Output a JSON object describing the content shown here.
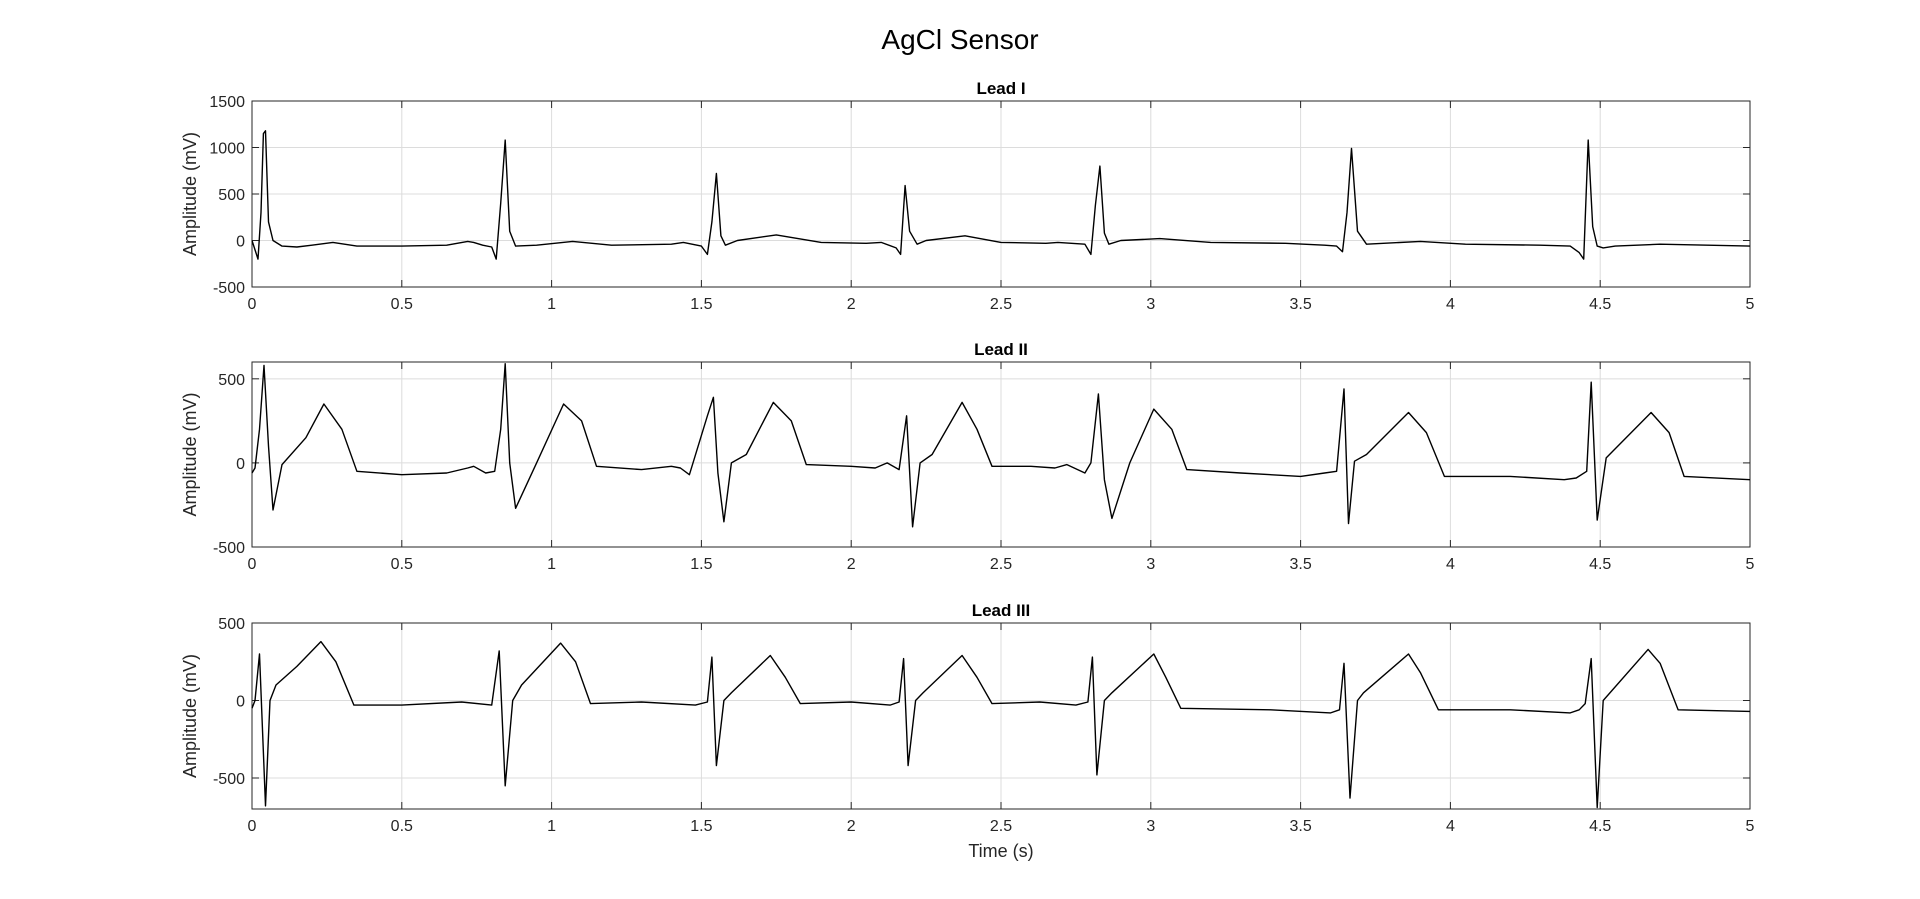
{
  "figure": {
    "title": "AgCl Sensor"
  },
  "chart_data": [
    {
      "type": "line",
      "title": "Lead I",
      "xlabel": "",
      "ylabel": "Amplitude (mV)",
      "xlim": [
        0,
        5
      ],
      "ylim": [
        -500,
        1500
      ],
      "xticks": [
        0,
        0.5,
        1,
        1.5,
        2,
        2.5,
        3,
        3.5,
        4,
        4.5,
        5
      ],
      "xtick_labels": [
        "0",
        "0.5",
        "1",
        "1.5",
        "2",
        "2.5",
        "3",
        "3.5",
        "4",
        "4.5",
        "5"
      ],
      "yticks": [
        -500,
        0,
        500,
        1000,
        1500
      ],
      "ytick_labels": [
        "-500",
        "0",
        "500",
        "1000",
        "1500"
      ],
      "grid": true,
      "color": "#000000",
      "series": [
        {
          "x": [
            0,
            0.02,
            0.03,
            0.038,
            0.045,
            0.055,
            0.07,
            0.1,
            0.15,
            0.2,
            0.27,
            0.35,
            0.5,
            0.65,
            0.72,
            0.74,
            0.77,
            0.8,
            0.815,
            0.83,
            0.845,
            0.86,
            0.88,
            0.95,
            1.07,
            1.2,
            1.4,
            1.44,
            1.5,
            1.52,
            1.535,
            1.55,
            1.565,
            1.58,
            1.62,
            1.75,
            1.9,
            2.05,
            2.1,
            2.15,
            2.165,
            2.18,
            2.195,
            2.22,
            2.25,
            2.38,
            2.5,
            2.65,
            2.69,
            2.78,
            2.8,
            2.815,
            2.83,
            2.845,
            2.86,
            2.9,
            3.03,
            3.2,
            3.45,
            3.58,
            3.62,
            3.64,
            3.655,
            3.67,
            3.69,
            3.72,
            3.9,
            4.05,
            4.3,
            4.4,
            4.43,
            4.445,
            4.46,
            4.475,
            4.49,
            4.51,
            4.55,
            4.7,
            5
          ],
          "y": [
            0,
            -200,
            300,
            1150,
            1180,
            200,
            0,
            -60,
            -70,
            -50,
            -20,
            -60,
            -60,
            -50,
            -10,
            -20,
            -50,
            -70,
            -200,
            400,
            1080,
            100,
            -60,
            -50,
            -10,
            -50,
            -40,
            -20,
            -60,
            -150,
            200,
            720,
            50,
            -50,
            0,
            60,
            -20,
            -30,
            -20,
            -80,
            -150,
            590,
            100,
            -40,
            0,
            50,
            -20,
            -30,
            -20,
            -40,
            -150,
            380,
            800,
            80,
            -40,
            0,
            20,
            -20,
            -30,
            -50,
            -60,
            -120,
            300,
            990,
            100,
            -40,
            -10,
            -40,
            -50,
            -60,
            -130,
            -200,
            1080,
            150,
            -60,
            -80,
            -60,
            -40,
            -60
          ]
        }
      ]
    },
    {
      "type": "line",
      "title": "Lead II",
      "xlabel": "",
      "ylabel": "Amplitude (mV)",
      "xlim": [
        0,
        5
      ],
      "ylim": [
        -500,
        600
      ],
      "xticks": [
        0,
        0.5,
        1,
        1.5,
        2,
        2.5,
        3,
        3.5,
        4,
        4.5,
        5
      ],
      "xtick_labels": [
        "0",
        "0.5",
        "1",
        "1.5",
        "2",
        "2.5",
        "3",
        "3.5",
        "4",
        "4.5",
        "5"
      ],
      "yticks": [
        -500,
        0,
        500
      ],
      "ytick_labels": [
        "-500",
        "0",
        "500"
      ],
      "grid": true,
      "color": "#000000",
      "series": [
        {
          "x": [
            0,
            0.01,
            0.025,
            0.04,
            0.055,
            0.07,
            0.1,
            0.18,
            0.24,
            0.3,
            0.35,
            0.5,
            0.65,
            0.72,
            0.74,
            0.78,
            0.81,
            0.83,
            0.845,
            0.86,
            0.88,
            0.95,
            1.04,
            1.1,
            1.15,
            1.3,
            1.4,
            1.43,
            1.46,
            1.52,
            1.54,
            1.555,
            1.575,
            1.6,
            1.65,
            1.74,
            1.8,
            1.85,
            2,
            2.08,
            2.12,
            2.16,
            2.185,
            2.205,
            2.23,
            2.27,
            2.37,
            2.42,
            2.47,
            2.6,
            2.68,
            2.72,
            2.78,
            2.8,
            2.825,
            2.845,
            2.87,
            2.93,
            3.01,
            3.07,
            3.12,
            3.3,
            3.5,
            3.58,
            3.62,
            3.645,
            3.66,
            3.68,
            3.72,
            3.86,
            3.92,
            3.98,
            4.2,
            4.38,
            4.42,
            4.455,
            4.47,
            4.49,
            4.52,
            4.67,
            4.73,
            4.78,
            5
          ],
          "y": [
            -60,
            -30,
            200,
            580,
            100,
            -280,
            -10,
            150,
            350,
            200,
            -50,
            -70,
            -60,
            -30,
            -20,
            -60,
            -50,
            200,
            590,
            0,
            -270,
            0,
            350,
            250,
            -20,
            -40,
            -20,
            -30,
            -70,
            280,
            390,
            -60,
            -350,
            0,
            50,
            360,
            250,
            -10,
            -20,
            -30,
            0,
            -40,
            280,
            -380,
            0,
            50,
            360,
            200,
            -20,
            -20,
            -30,
            -10,
            -60,
            0,
            410,
            -100,
            -330,
            0,
            320,
            200,
            -40,
            -60,
            -80,
            -60,
            -50,
            440,
            -360,
            10,
            50,
            300,
            180,
            -80,
            -80,
            -100,
            -90,
            -50,
            480,
            -340,
            30,
            300,
            180,
            -80,
            -100
          ]
        }
      ]
    },
    {
      "type": "line",
      "title": "Lead III",
      "xlabel": "Time (s)",
      "ylabel": "Amplitude (mV)",
      "xlim": [
        0,
        5
      ],
      "ylim": [
        -700,
        500
      ],
      "xticks": [
        0,
        0.5,
        1,
        1.5,
        2,
        2.5,
        3,
        3.5,
        4,
        4.5,
        5
      ],
      "xtick_labels": [
        "0",
        "0.5",
        "1",
        "1.5",
        "2",
        "2.5",
        "3",
        "3.5",
        "4",
        "4.5",
        "5"
      ],
      "yticks": [
        -500,
        0,
        500
      ],
      "ytick_labels": [
        "-500",
        "0",
        "500"
      ],
      "grid": true,
      "color": "#000000",
      "series": [
        {
          "x": [
            0,
            0.01,
            0.025,
            0.045,
            0.06,
            0.08,
            0.15,
            0.23,
            0.28,
            0.34,
            0.5,
            0.7,
            0.8,
            0.825,
            0.845,
            0.87,
            0.9,
            1.03,
            1.08,
            1.13,
            1.3,
            1.48,
            1.52,
            1.535,
            1.55,
            1.575,
            1.6,
            1.73,
            1.78,
            1.83,
            2,
            2.13,
            2.16,
            2.175,
            2.19,
            2.215,
            2.24,
            2.37,
            2.42,
            2.47,
            2.63,
            2.75,
            2.79,
            2.805,
            2.82,
            2.845,
            2.87,
            3.01,
            3.05,
            3.1,
            3.4,
            3.6,
            3.63,
            3.645,
            3.665,
            3.69,
            3.71,
            3.86,
            3.9,
            3.96,
            4.2,
            4.4,
            4.43,
            4.45,
            4.47,
            4.49,
            4.51,
            4.66,
            4.7,
            4.76,
            5
          ],
          "y": [
            -50,
            0,
            300,
            -680,
            0,
            100,
            220,
            380,
            250,
            -30,
            -30,
            -10,
            -30,
            320,
            -550,
            0,
            100,
            370,
            250,
            -20,
            -10,
            -30,
            -10,
            280,
            -420,
            0,
            50,
            290,
            150,
            -20,
            -10,
            -30,
            -10,
            270,
            -420,
            0,
            50,
            290,
            150,
            -20,
            -10,
            -30,
            -10,
            280,
            -480,
            0,
            50,
            300,
            150,
            -50,
            -60,
            -80,
            -60,
            240,
            -630,
            0,
            50,
            300,
            180,
            -60,
            -60,
            -80,
            -60,
            -20,
            270,
            -690,
            0,
            330,
            240,
            -60,
            -70
          ]
        }
      ]
    }
  ]
}
